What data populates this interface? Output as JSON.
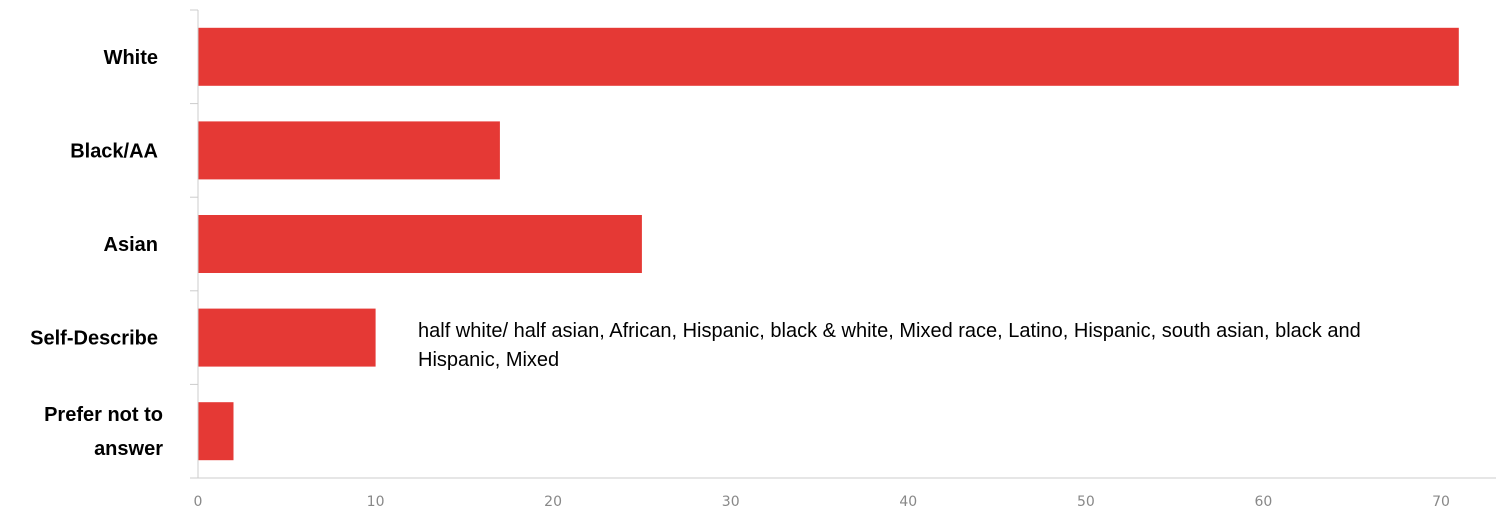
{
  "chart_data": {
    "type": "bar",
    "orientation": "horizontal",
    "categories": [
      [
        "White"
      ],
      [
        "Black/AA"
      ],
      [
        "Asian"
      ],
      [
        "Self-Describe"
      ],
      [
        "Prefer not to",
        "answer"
      ]
    ],
    "values": [
      71,
      17,
      25,
      10,
      2
    ],
    "xlim": [
      0,
      70
    ],
    "xticks": [
      0,
      10,
      20,
      30,
      40,
      50,
      60,
      70
    ],
    "grid": false,
    "bar_color": "#e53935",
    "axis_color": "#cccccc",
    "annotation": "half white/ half asian, African, Hispanic, black & white, Mixed race, Latino, Hispanic, south asian, black and Hispanic, Mixed"
  }
}
